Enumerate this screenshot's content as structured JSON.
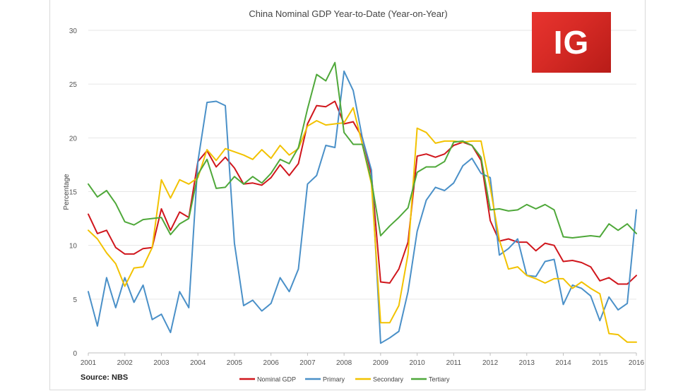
{
  "logo": {
    "text": "IG",
    "color": "#d62a25"
  },
  "source": "Source: NBS",
  "chart_data": {
    "type": "line",
    "title": "China Nominal GDP Year-to-Date (Year-on-Year)",
    "xlabel": "",
    "ylabel": "Percentage",
    "xlim": [
      2001,
      2016
    ],
    "ylim": [
      0,
      30
    ],
    "y_ticks": [
      "0",
      "5",
      "10",
      "15",
      "20",
      "25",
      "30"
    ],
    "x_ticks": [
      "2001",
      "2002",
      "2003",
      "2004",
      "2005",
      "2006",
      "2007",
      "2008",
      "2009",
      "2010",
      "2011",
      "2012",
      "2013",
      "2014",
      "2015",
      "2016"
    ],
    "grid": true,
    "legend_position": "bottom",
    "series": [
      {
        "name": "Nominal GDP",
        "color": "#d0161c",
        "x": [
          2001,
          2001.25,
          2001.5,
          2001.75,
          2002,
          2002.25,
          2002.5,
          2002.75,
          2003,
          2003.25,
          2003.5,
          2003.75,
          2004,
          2004.25,
          2004.5,
          2004.75,
          2005,
          2005.25,
          2005.5,
          2005.75,
          2006,
          2006.25,
          2006.5,
          2006.75,
          2007,
          2007.25,
          2007.5,
          2007.75,
          2008,
          2008.25,
          2008.5,
          2008.75,
          2009,
          2009.25,
          2009.5,
          2009.75,
          2010,
          2010.25,
          2010.5,
          2010.75,
          2011,
          2011.25,
          2011.5,
          2011.75,
          2012,
          2012.25,
          2012.5,
          2012.75,
          2013,
          2013.25,
          2013.5,
          2013.75,
          2014,
          2014.25,
          2014.5,
          2014.75,
          2015,
          2015.25,
          2015.5,
          2015.75,
          2016
        ],
        "values": [
          12.9,
          11.1,
          11.4,
          9.8,
          9.2,
          9.2,
          9.7,
          9.8,
          13.4,
          11.4,
          13.1,
          12.6,
          17.8,
          18.8,
          17.3,
          18.2,
          17.2,
          15.7,
          15.8,
          15.6,
          16.3,
          17.5,
          16.5,
          17.6,
          21.3,
          23.0,
          22.9,
          23.4,
          21.3,
          21.5,
          20.0,
          16.6,
          6.6,
          6.5,
          7.8,
          10.3,
          18.3,
          18.5,
          18.2,
          18.5,
          19.3,
          19.6,
          19.3,
          17.9,
          12.3,
          10.4,
          10.6,
          10.3,
          10.3,
          9.5,
          10.2,
          10.0,
          8.5,
          8.6,
          8.4,
          8.0,
          6.7,
          7.0,
          6.4,
          6.4,
          7.2
        ]
      },
      {
        "name": "Primary",
        "color": "#4a90c8",
        "x": [
          2001,
          2001.25,
          2001.5,
          2001.75,
          2002,
          2002.25,
          2002.5,
          2002.75,
          2003,
          2003.25,
          2003.5,
          2003.75,
          2004,
          2004.25,
          2004.5,
          2004.75,
          2005,
          2005.25,
          2005.5,
          2005.75,
          2006,
          2006.25,
          2006.5,
          2006.75,
          2007,
          2007.25,
          2007.5,
          2007.75,
          2008,
          2008.25,
          2008.5,
          2008.75,
          2009,
          2009.25,
          2009.5,
          2009.75,
          2010,
          2010.25,
          2010.5,
          2010.75,
          2011,
          2011.25,
          2011.5,
          2011.75,
          2012,
          2012.25,
          2012.5,
          2012.75,
          2013,
          2013.25,
          2013.5,
          2013.75,
          2014,
          2014.25,
          2014.5,
          2014.75,
          2015,
          2015.25,
          2015.5,
          2015.75,
          2016
        ],
        "values": [
          5.7,
          2.5,
          7.0,
          4.2,
          7.0,
          4.7,
          6.3,
          3.1,
          3.6,
          1.9,
          5.7,
          4.2,
          17.8,
          23.3,
          23.4,
          23.0,
          10.2,
          4.4,
          4.9,
          3.9,
          4.6,
          7.0,
          5.7,
          7.8,
          15.7,
          16.5,
          19.3,
          19.1,
          26.2,
          24.4,
          20.0,
          17.0,
          0.9,
          1.4,
          2.0,
          5.7,
          11.3,
          14.2,
          15.4,
          15.1,
          15.8,
          17.4,
          18.1,
          16.7,
          16.3,
          9.1,
          9.7,
          10.6,
          7.2,
          7.1,
          8.5,
          8.7,
          4.5,
          6.3,
          6.0,
          5.3,
          3.0,
          5.2,
          4.0,
          4.6,
          13.3
        ]
      },
      {
        "name": "Secondary",
        "color": "#f2c200",
        "x": [
          2001,
          2001.25,
          2001.5,
          2001.75,
          2002,
          2002.25,
          2002.5,
          2002.75,
          2003,
          2003.25,
          2003.5,
          2003.75,
          2004,
          2004.25,
          2004.5,
          2004.75,
          2005,
          2005.25,
          2005.5,
          2005.75,
          2006,
          2006.25,
          2006.5,
          2006.75,
          2007,
          2007.25,
          2007.5,
          2007.75,
          2008,
          2008.25,
          2008.5,
          2008.75,
          2009,
          2009.25,
          2009.5,
          2009.75,
          2010,
          2010.25,
          2010.5,
          2010.75,
          2011,
          2011.25,
          2011.5,
          2011.75,
          2012,
          2012.25,
          2012.5,
          2012.75,
          2013,
          2013.25,
          2013.5,
          2013.75,
          2014,
          2014.25,
          2014.5,
          2014.75,
          2015,
          2015.25,
          2015.5,
          2015.75,
          2016
        ],
        "values": [
          11.4,
          10.6,
          9.3,
          8.3,
          6.2,
          7.9,
          8.0,
          9.8,
          16.1,
          14.4,
          16.1,
          15.7,
          16.3,
          18.9,
          17.9,
          19.0,
          18.7,
          18.4,
          18.0,
          18.9,
          18.1,
          19.3,
          18.4,
          19.0,
          21.1,
          21.6,
          21.2,
          21.3,
          21.4,
          22.8,
          19.4,
          15.7,
          2.8,
          2.8,
          4.4,
          9.2,
          20.9,
          20.5,
          19.5,
          19.7,
          19.7,
          19.6,
          19.7,
          19.7,
          15.4,
          10.5,
          7.8,
          8.0,
          7.2,
          6.9,
          6.5,
          6.9,
          6.9,
          6.0,
          6.6,
          6.0,
          5.5,
          1.8,
          1.7,
          1.0,
          1.0
        ]
      },
      {
        "name": "Tertiary",
        "color": "#4fa83a",
        "x": [
          2001,
          2001.25,
          2001.5,
          2001.75,
          2002,
          2002.25,
          2002.5,
          2002.75,
          2003,
          2003.25,
          2003.5,
          2003.75,
          2004,
          2004.25,
          2004.5,
          2004.75,
          2005,
          2005.25,
          2005.5,
          2005.75,
          2006,
          2006.25,
          2006.5,
          2006.75,
          2007,
          2007.25,
          2007.5,
          2007.75,
          2008,
          2008.25,
          2008.5,
          2008.75,
          2009,
          2009.25,
          2009.5,
          2009.75,
          2010,
          2010.25,
          2010.5,
          2010.75,
          2011,
          2011.25,
          2011.5,
          2011.75,
          2012,
          2012.25,
          2012.5,
          2012.75,
          2013,
          2013.25,
          2013.5,
          2013.75,
          2014,
          2014.25,
          2014.5,
          2014.75,
          2015,
          2015.25,
          2015.5,
          2015.75,
          2016
        ],
        "values": [
          15.7,
          14.5,
          15.1,
          13.9,
          12.2,
          11.9,
          12.4,
          12.5,
          12.6,
          11.0,
          12.0,
          12.5,
          16.6,
          18.0,
          15.3,
          15.4,
          16.4,
          15.7,
          16.4,
          15.8,
          16.7,
          18.0,
          17.6,
          19.1,
          22.7,
          25.9,
          25.3,
          27.0,
          20.5,
          19.4,
          19.4,
          16.0,
          10.9,
          11.8,
          12.6,
          13.5,
          16.8,
          17.3,
          17.3,
          17.8,
          19.6,
          19.7,
          19.3,
          18.2,
          13.3,
          13.4,
          13.2,
          13.3,
          13.8,
          13.4,
          13.8,
          13.3,
          10.8,
          10.7,
          10.8,
          10.9,
          10.8,
          12.0,
          11.4,
          12.0,
          11.1
        ]
      }
    ]
  }
}
